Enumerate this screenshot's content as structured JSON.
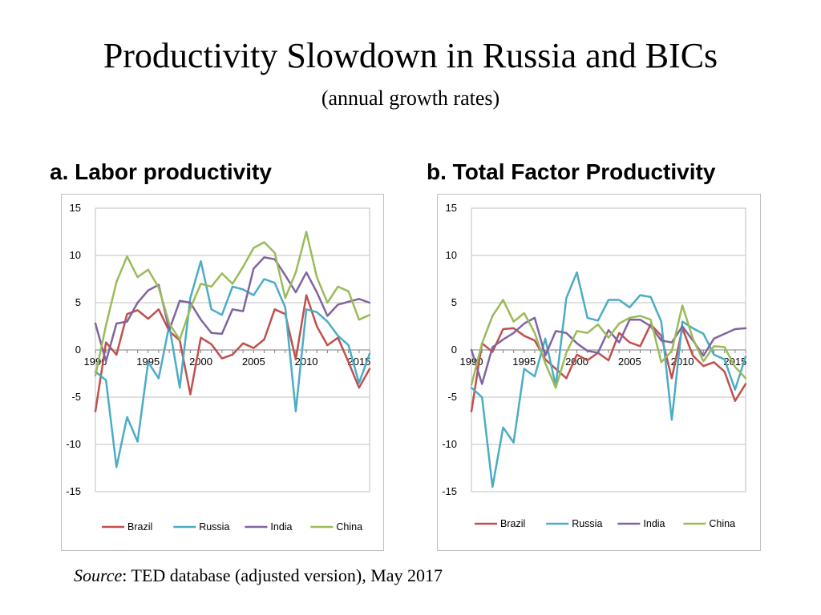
{
  "title": "Productivity Slowdown in Russia and BICs",
  "subtitle": "(annual growth rates)",
  "source": {
    "label": "Source",
    "text": ": TED database (adjusted version), May 2017"
  },
  "colors": {
    "Brazil": "#c0504d",
    "Russia": "#4bacc6",
    "India": "#8064a2",
    "China": "#9bbb59"
  },
  "chart_data": [
    {
      "type": "line",
      "title": "a. Labor productivity",
      "x": [
        1990,
        1991,
        1992,
        1993,
        1994,
        1995,
        1996,
        1997,
        1998,
        1999,
        2000,
        2001,
        2002,
        2003,
        2004,
        2005,
        2006,
        2007,
        2008,
        2009,
        2010,
        2011,
        2012,
        2013,
        2014,
        2015,
        2016
      ],
      "xticks": [
        "1990",
        "1995",
        "2000",
        "2005",
        "2010",
        "2015"
      ],
      "yticks": [
        "15",
        "10",
        "5",
        "0",
        "-5",
        "-10",
        "-15"
      ],
      "ylim": [
        -15,
        15
      ],
      "grid": true,
      "legend": "bottom",
      "series": [
        {
          "name": "Brazil",
          "values": [
            -6.5,
            0.8,
            -0.5,
            3.8,
            4.2,
            3.3,
            4.3,
            2.0,
            1.0,
            -4.7,
            1.3,
            0.6,
            -0.9,
            -0.5,
            0.7,
            0.2,
            1.1,
            4.3,
            3.8,
            -1.0,
            5.8,
            2.5,
            0.5,
            1.3,
            -1.3,
            -4.0,
            -2.0
          ]
        },
        {
          "name": "Russia",
          "values": [
            -2.3,
            -3.2,
            -12.4,
            -7.1,
            -9.7,
            -1.3,
            -3.0,
            2.6,
            -4.0,
            5.5,
            9.4,
            4.3,
            3.7,
            6.7,
            6.4,
            5.8,
            7.5,
            7.1,
            4.5,
            -6.5,
            4.3,
            4.0,
            3.0,
            1.5,
            0.5,
            -3.5,
            -0.4
          ]
        },
        {
          "name": "India",
          "values": [
            2.8,
            -1.2,
            2.8,
            3.0,
            5.0,
            6.3,
            6.9,
            2.1,
            5.2,
            5.0,
            3.2,
            1.8,
            1.7,
            4.3,
            4.1,
            8.6,
            9.8,
            9.6,
            7.9,
            6.1,
            8.2,
            6.1,
            3.6,
            4.8,
            5.1,
            5.4,
            5.0
          ]
        },
        {
          "name": "China",
          "values": [
            -2.7,
            2.6,
            7.2,
            9.9,
            7.7,
            8.5,
            6.6,
            2.8,
            1.1,
            4.4,
            7.0,
            6.7,
            8.1,
            7.0,
            8.8,
            10.8,
            11.4,
            10.3,
            5.5,
            8.2,
            12.5,
            7.7,
            5.0,
            6.7,
            6.2,
            3.2,
            3.7
          ]
        }
      ]
    },
    {
      "type": "line",
      "title": "b. Total Factor Productivity",
      "x": [
        1990,
        1991,
        1992,
        1993,
        1994,
        1995,
        1996,
        1997,
        1998,
        1999,
        2000,
        2001,
        2002,
        2003,
        2004,
        2005,
        2006,
        2007,
        2008,
        2009,
        2010,
        2011,
        2012,
        2013,
        2014,
        2015,
        2016
      ],
      "xticks": [
        "1990",
        "1995",
        "2000",
        "2005",
        "2010",
        "2015"
      ],
      "yticks": [
        "15",
        "10",
        "5",
        "0",
        "-5",
        "-10",
        "-15"
      ],
      "ylim": [
        -15,
        15
      ],
      "grid": true,
      "legend": "bottom",
      "series": [
        {
          "name": "Brazil",
          "values": [
            -6.5,
            0.7,
            -0.2,
            2.2,
            2.3,
            1.5,
            1.0,
            -1.0,
            -2.0,
            -3.0,
            -0.5,
            -1.1,
            -0.3,
            -1.1,
            1.8,
            0.8,
            0.4,
            2.7,
            1.5,
            -3.0,
            2.3,
            -0.6,
            -1.7,
            -1.3,
            -2.3,
            -5.4,
            -3.6
          ]
        },
        {
          "name": "Russia",
          "values": [
            -4.0,
            -5.0,
            -14.5,
            -8.2,
            -9.8,
            -2.0,
            -2.8,
            1.2,
            -3.8,
            5.5,
            8.2,
            3.4,
            3.1,
            5.3,
            5.3,
            4.5,
            5.8,
            5.6,
            3.0,
            -7.4,
            3.0,
            2.3,
            1.7,
            -0.5,
            -1.0,
            -4.2,
            -0.7
          ]
        },
        {
          "name": "India",
          "values": [
            0.0,
            -3.6,
            0.3,
            1.1,
            1.8,
            2.8,
            3.4,
            -0.6,
            2.0,
            1.8,
            0.7,
            -0.1,
            -0.3,
            2.1,
            0.8,
            3.2,
            3.2,
            2.5,
            1.0,
            0.8,
            2.5,
            1.0,
            -0.6,
            1.2,
            1.7,
            2.2,
            2.3
          ]
        },
        {
          "name": "China",
          "values": [
            -3.7,
            0.7,
            3.6,
            5.3,
            3.0,
            3.9,
            1.8,
            -1.4,
            -4.0,
            -0.3,
            2.0,
            1.8,
            2.7,
            1.3,
            2.8,
            3.4,
            3.6,
            3.2,
            -1.3,
            -0.1,
            4.7,
            1.2,
            -1.2,
            0.4,
            0.3,
            -1.8,
            -3.0
          ]
        }
      ]
    }
  ]
}
